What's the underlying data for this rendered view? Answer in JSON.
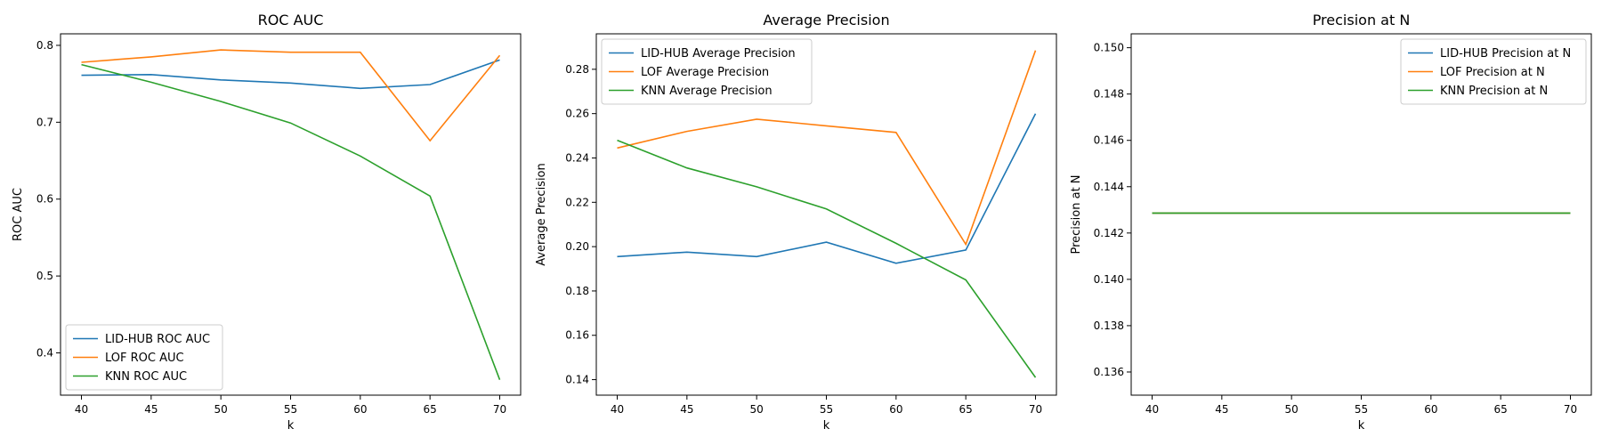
{
  "figure": {
    "panels": 3
  },
  "series_colors": {
    "LID-HUB": "#1f77b4",
    "LOF": "#ff7f0e",
    "KNN": "#2ca02c"
  },
  "chart_data": [
    {
      "type": "line",
      "title": "ROC AUC",
      "xlabel": "k",
      "ylabel": "ROC AUC",
      "x": [
        40,
        45,
        50,
        55,
        60,
        65,
        70
      ],
      "xlim": [
        38.5,
        71.5
      ],
      "ylim": [
        0.345,
        0.815
      ],
      "xticks": [
        40,
        45,
        50,
        55,
        60,
        65,
        70
      ],
      "yticks": [
        "0.4",
        "0.5",
        "0.6",
        "0.7",
        "0.8"
      ],
      "legend_position": "lower-left",
      "series": [
        {
          "name": "LID-HUB ROC AUC",
          "color": "#1f77b4",
          "values": [
            0.761,
            0.762,
            0.755,
            0.751,
            0.744,
            0.749,
            0.781
          ]
        },
        {
          "name": "LOF ROC AUC",
          "color": "#ff7f0e",
          "values": [
            0.778,
            0.785,
            0.794,
            0.791,
            0.791,
            0.676,
            0.787
          ]
        },
        {
          "name": "KNN ROC AUC",
          "color": "#2ca02c",
          "values": [
            0.775,
            0.752,
            0.727,
            0.699,
            0.656,
            0.604,
            0.365
          ]
        }
      ]
    },
    {
      "type": "line",
      "title": "Average Precision",
      "xlabel": "k",
      "ylabel": "Average Precision",
      "x": [
        40,
        45,
        50,
        55,
        60,
        65,
        70
      ],
      "xlim": [
        38.5,
        71.5
      ],
      "ylim": [
        0.133,
        0.296
      ],
      "xticks": [
        40,
        45,
        50,
        55,
        60,
        65,
        70
      ],
      "yticks": [
        "0.14",
        "0.16",
        "0.18",
        "0.20",
        "0.22",
        "0.24",
        "0.26",
        "0.28"
      ],
      "legend_position": "upper-left",
      "series": [
        {
          "name": "LID-HUB Average Precision",
          "color": "#1f77b4",
          "values": [
            0.1955,
            0.1975,
            0.1955,
            0.202,
            0.1925,
            0.1985,
            0.26
          ]
        },
        {
          "name": "LOF Average Precision",
          "color": "#ff7f0e",
          "values": [
            0.2445,
            0.252,
            0.2575,
            0.2545,
            0.2515,
            0.201,
            0.2885
          ]
        },
        {
          "name": "KNN Average Precision",
          "color": "#2ca02c",
          "values": [
            0.248,
            0.2355,
            0.227,
            0.217,
            0.2015,
            0.185,
            0.141
          ]
        }
      ]
    },
    {
      "type": "line",
      "title": "Precision at N",
      "xlabel": "k",
      "ylabel": "Precision at N",
      "x": [
        40,
        45,
        50,
        55,
        60,
        65,
        70
      ],
      "xlim": [
        38.5,
        71.5
      ],
      "ylim": [
        0.135,
        0.1506
      ],
      "xticks": [
        40,
        45,
        50,
        55,
        60,
        65,
        70
      ],
      "yticks": [
        "0.136",
        "0.138",
        "0.140",
        "0.142",
        "0.144",
        "0.146",
        "0.148",
        "0.150"
      ],
      "legend_position": "upper-right",
      "series": [
        {
          "name": "LID-HUB Precision at N",
          "color": "#1f77b4",
          "values": [
            0.14286,
            0.14286,
            0.14286,
            0.14286,
            0.14286,
            0.14286,
            0.14286
          ]
        },
        {
          "name": "LOF Precision at N",
          "color": "#ff7f0e",
          "values": [
            0.14286,
            0.14286,
            0.14286,
            0.14286,
            0.14286,
            0.14286,
            0.14286
          ]
        },
        {
          "name": "KNN Precision at N",
          "color": "#2ca02c",
          "values": [
            0.14286,
            0.14286,
            0.14286,
            0.14286,
            0.14286,
            0.14286,
            0.14286
          ]
        }
      ]
    }
  ]
}
